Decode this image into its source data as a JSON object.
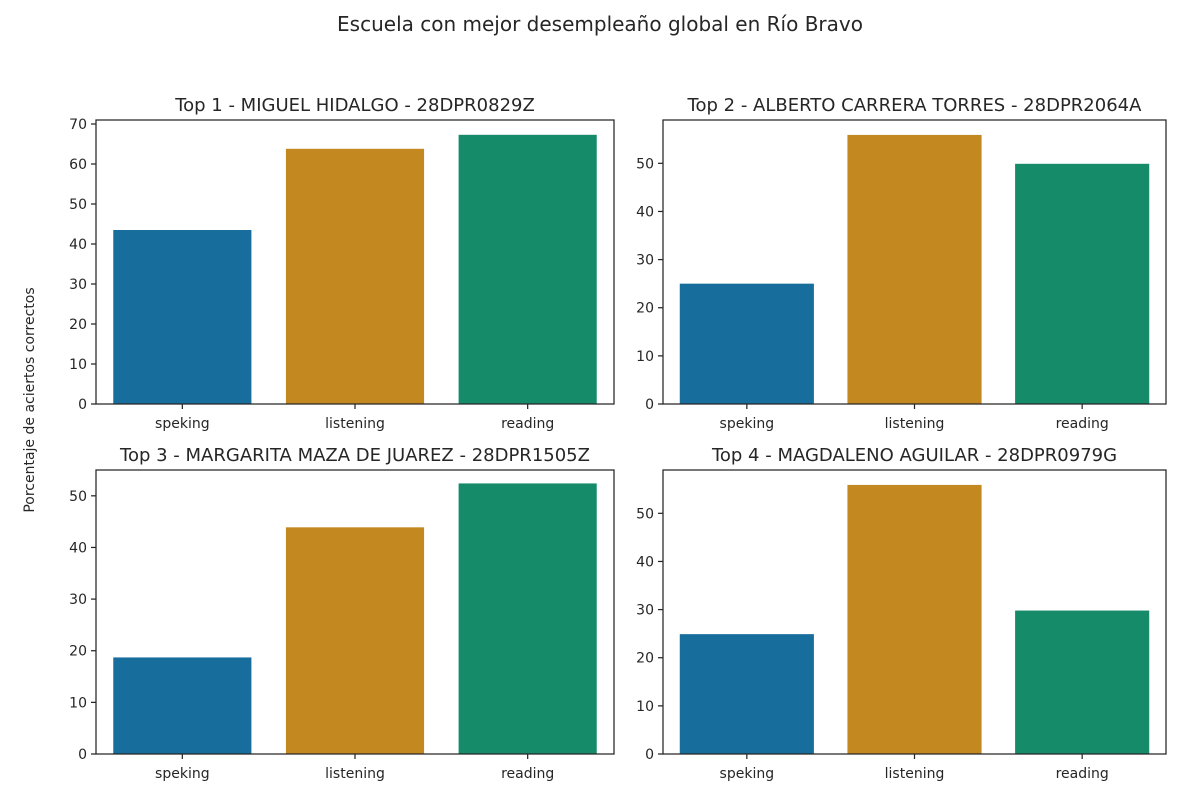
{
  "title": "Escuela con mejor desempleaño global en Río Bravo",
  "ylabel": "Porcentaje de aciertos correctos",
  "colors": {
    "speking": "#176d9c",
    "listening": "#c38820",
    "reading": "#158b6a"
  },
  "chart_data": [
    {
      "type": "bar",
      "title": "Top  1 - MIGUEL HIDALGO - 28DPR0829Z",
      "categories": [
        "speking",
        "listening",
        "reading"
      ],
      "values": [
        43.5,
        63.8,
        67.3
      ],
      "ylim": [
        0,
        71
      ],
      "yticks": [
        0,
        10,
        20,
        30,
        40,
        50,
        60,
        70
      ]
    },
    {
      "type": "bar",
      "title": "Top  2 - ALBERTO CARRERA TORRES - 28DPR2064A",
      "categories": [
        "speking",
        "listening",
        "reading"
      ],
      "values": [
        25.0,
        55.9,
        49.9
      ],
      "ylim": [
        0,
        59
      ],
      "yticks": [
        0,
        10,
        20,
        30,
        40,
        50
      ]
    },
    {
      "type": "bar",
      "title": "Top  3 - MARGARITA MAZA DE JUAREZ - 28DPR1505Z",
      "categories": [
        "speking",
        "listening",
        "reading"
      ],
      "values": [
        18.7,
        43.9,
        52.4
      ],
      "ylim": [
        0,
        55
      ],
      "yticks": [
        0,
        10,
        20,
        30,
        40,
        50
      ]
    },
    {
      "type": "bar",
      "title": "Top  4 - MAGDALENO AGUILAR - 28DPR0979G",
      "categories": [
        "speking",
        "listening",
        "reading"
      ],
      "values": [
        24.9,
        55.9,
        29.8
      ],
      "ylim": [
        0,
        59
      ],
      "yticks": [
        0,
        10,
        20,
        30,
        40,
        50
      ]
    }
  ]
}
